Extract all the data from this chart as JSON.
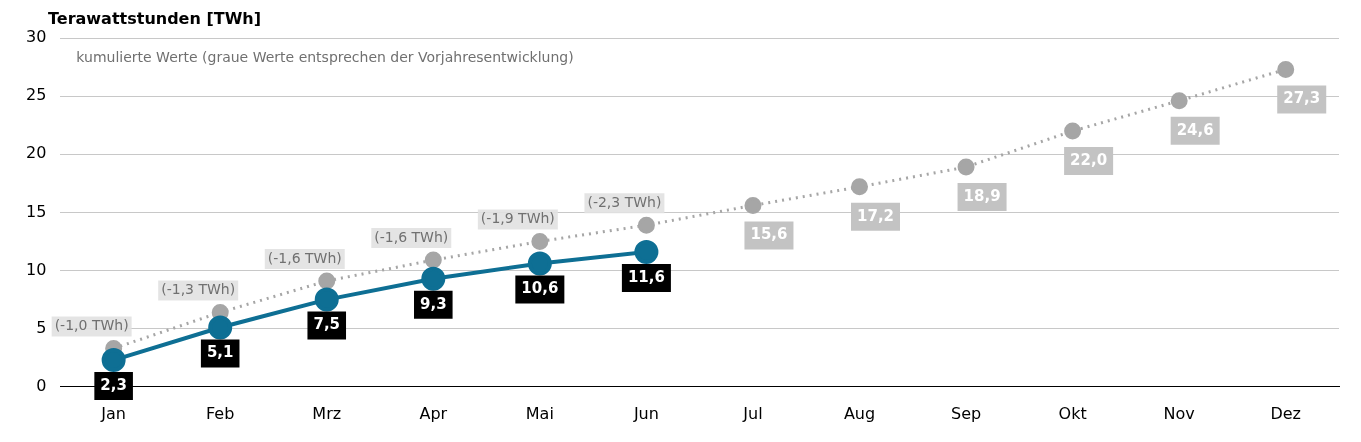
{
  "chart_data": {
    "type": "line",
    "ylabel": "Terawattstunden [TWh]",
    "categories": [
      "Jan",
      "Feb",
      "Mrz",
      "Apr",
      "Mai",
      "Jun",
      "Jul",
      "Aug",
      "Sep",
      "Okt",
      "Nov",
      "Dez"
    ],
    "series": [
      {
        "color": "#0e6f94",
        "line_style": "solid",
        "values": [
          2.3,
          5.1,
          7.5,
          9.3,
          10.6,
          11.6,
          null,
          null,
          null,
          null,
          null,
          null
        ],
        "value_labels": [
          "2,3",
          "5,1",
          "7,5",
          "9,3",
          "10,6",
          "11,6",
          null,
          null,
          null,
          null,
          null,
          null
        ]
      },
      {
        "color": "#a6a6a6",
        "line_style": "dotted",
        "values": [
          3.3,
          6.4,
          9.1,
          10.9,
          12.5,
          13.9,
          15.6,
          17.2,
          18.9,
          22.0,
          24.6,
          27.3
        ],
        "value_labels": [
          null,
          null,
          null,
          null,
          null,
          null,
          "15,6",
          "17,2",
          "18,9",
          "22,0",
          "24,6",
          "27,3"
        ]
      }
    ],
    "ylim": [
      0,
      30
    ],
    "yticks": [
      0,
      5,
      10,
      15,
      20,
      25,
      30
    ],
    "grid": "y",
    "legend": false,
    "marker": "circle",
    "annotations": [
      "kumulierte Werte (graue Werte entsprechen der Vorjahresentwicklung)",
      {
        "text": "(-1,0 TWh)",
        "x": "Jan",
        "y": 3.3
      },
      {
        "text": "(-1,3 TWh)",
        "x": "Feb",
        "y": 6.4
      },
      {
        "text": "(-1,6 TWh)",
        "x": "Mrz",
        "y": 9.1
      },
      {
        "text": "(-1,6 TWh)",
        "x": "Apr",
        "y": 10.9
      },
      {
        "text": "(-1,9 TWh)",
        "x": "Mai",
        "y": 12.5
      },
      {
        "text": "(-2,3 TWh)",
        "x": "Jun",
        "y": 13.9
      }
    ]
  }
}
